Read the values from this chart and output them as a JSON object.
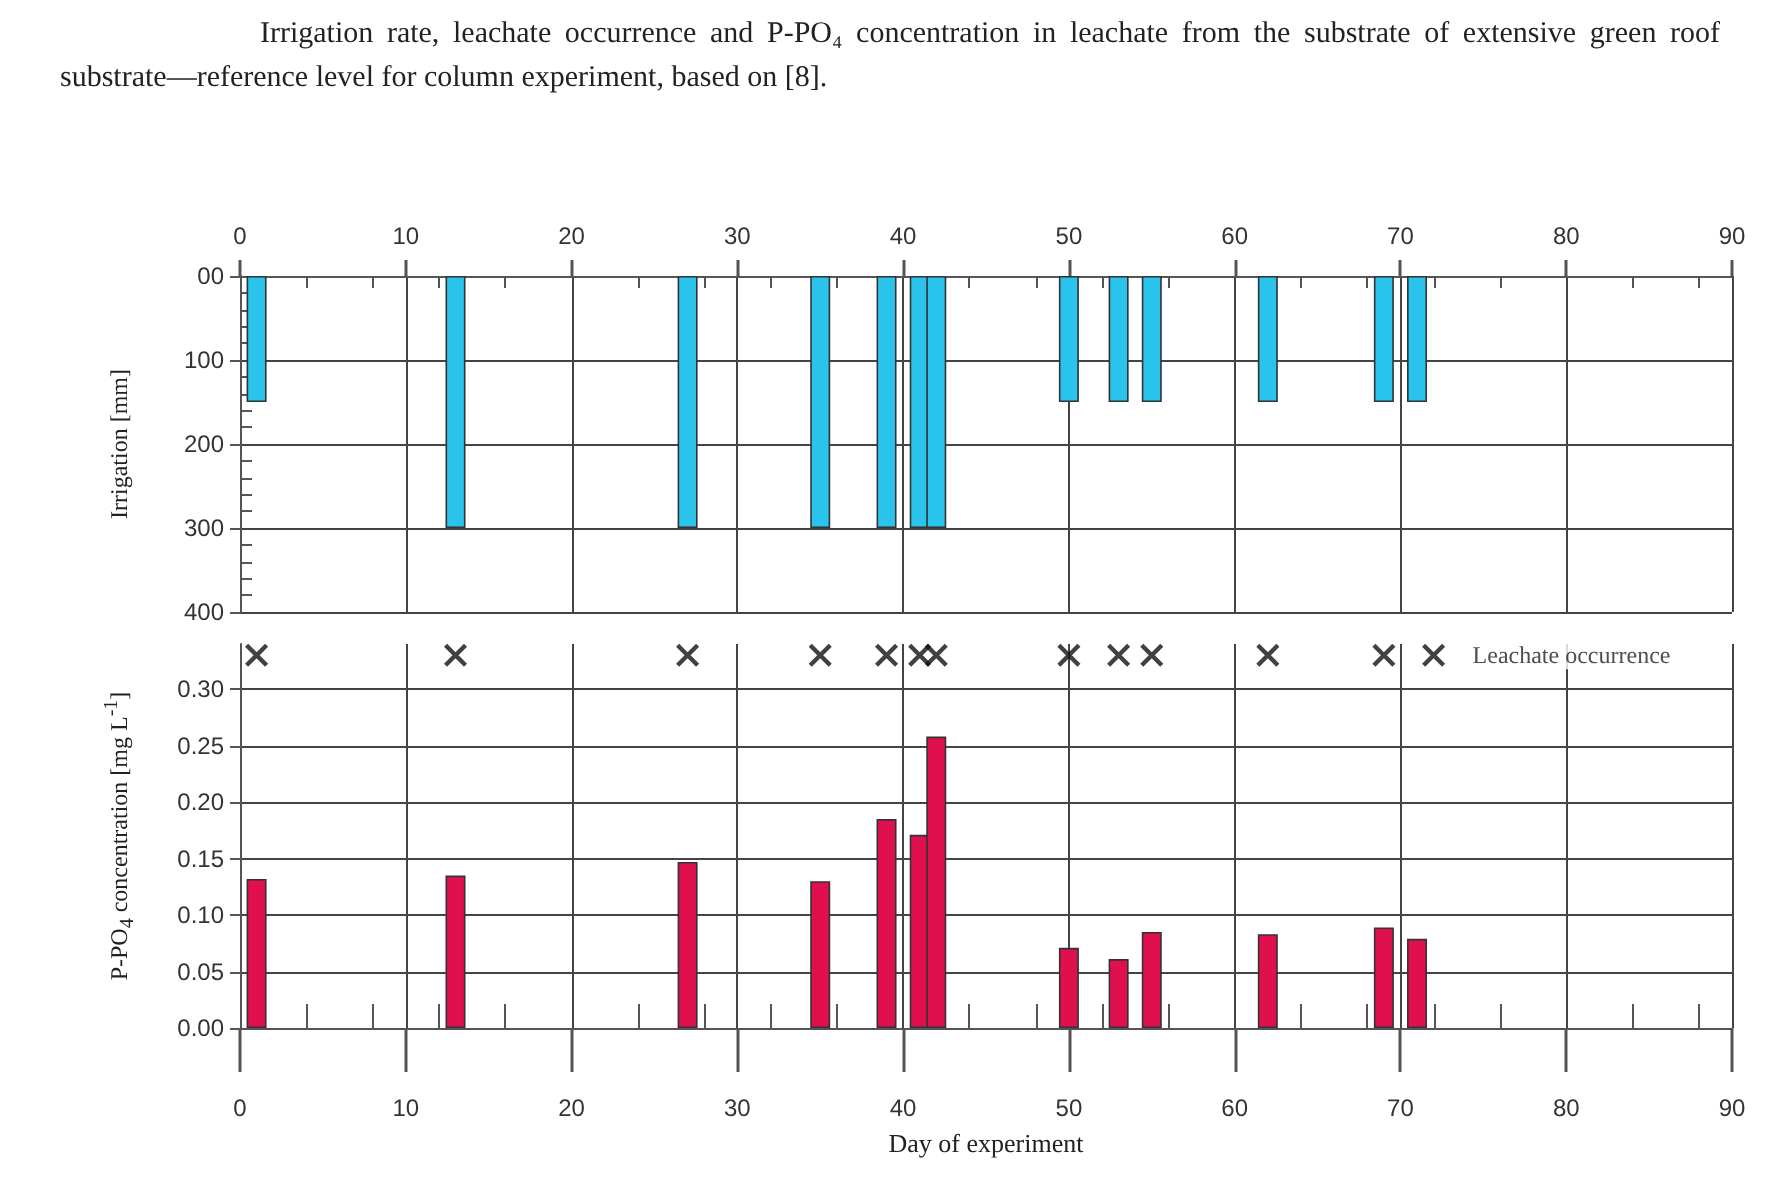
{
  "chart_data": [
    {
      "type": "bar",
      "title": "Irrigation rate, leachate occurrence and P-PO₄ concentration in leachate from the substrate of extensive green roof substrate—reference level for column experiment, based on [8].",
      "ylabel": "Irrigation [mm]",
      "x": [
        1,
        13,
        27,
        35,
        39,
        41,
        42,
        50,
        53,
        55,
        62,
        69,
        71
      ],
      "series": [
        {
          "color": "#29c3ec",
          "values": [
            150,
            300,
            300,
            300,
            300,
            300,
            300,
            150,
            150,
            150,
            150,
            150,
            150
          ]
        }
      ],
      "xlim": [
        0,
        90
      ],
      "xticks": [
        0,
        10,
        20,
        30,
        40,
        50,
        60,
        70,
        80,
        90
      ],
      "ylim": [
        400,
        0
      ],
      "yticks": [
        {
          "value": 0,
          "label": "00"
        },
        100,
        200,
        300,
        400
      ],
      "grid": true
    },
    {
      "type": "bar",
      "xlabel": "Day of experiment",
      "ylabel": "P-PO$_{4}$ concentration [mg L$^{-1}$]",
      "x": [
        1,
        13,
        27,
        35,
        39,
        41,
        42,
        50,
        53,
        55,
        62,
        69,
        71
      ],
      "series": [
        {
          "color": "#e0104f",
          "values": [
            0.132,
            0.135,
            0.147,
            0.13,
            0.185,
            0.171,
            0.258,
            0.071,
            0.061,
            0.085,
            0.083,
            0.089,
            0.079
          ]
        },
        {
          "type": "scatter",
          "name": "Leachate occurrence",
          "color": "#111111",
          "x": [
            1,
            13,
            27,
            35,
            39,
            41,
            42,
            50,
            53,
            55,
            62,
            69,
            72
          ],
          "values": [
            0.33,
            0.33,
            0.33,
            0.33,
            0.33,
            0.33,
            0.33,
            0.33,
            0.33,
            0.33,
            0.33,
            0.33,
            0.33
          ]
        }
      ],
      "marker": "cross",
      "legend": "top right",
      "xlim": [
        0,
        90
      ],
      "xticks": [
        0,
        10,
        20,
        30,
        40,
        50,
        60,
        70,
        80,
        90
      ],
      "ylim": [
        0,
        0.34
      ],
      "yticks": [
        {
          "value": 0,
          "label": "0.00"
        },
        {
          "value": 0.05,
          "label": "0.05"
        },
        {
          "value": 0.1,
          "label": "0.10"
        },
        {
          "value": 0.15,
          "label": "0.15"
        },
        {
          "value": 0.2,
          "label": "0.20"
        },
        {
          "value": 0.25,
          "label": "0.25"
        },
        {
          "value": 0.3,
          "label": "0.30"
        }
      ],
      "grid": true
    }
  ]
}
